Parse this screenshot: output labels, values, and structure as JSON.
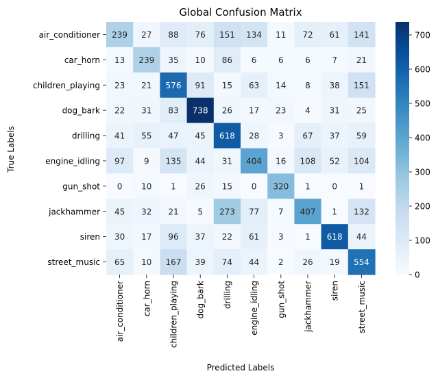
{
  "chart_data": {
    "type": "heatmap",
    "title": "Global Confusion Matrix",
    "xlabel": "Predicted Labels",
    "ylabel": "True Labels",
    "x_categories": [
      "air_conditioner",
      "car_horn",
      "children_playing",
      "dog_bark",
      "drilling",
      "engine_idling",
      "gun_shot",
      "jackhammer",
      "siren",
      "street_music"
    ],
    "y_categories": [
      "air_conditioner",
      "car_horn",
      "children_playing",
      "dog_bark",
      "drilling",
      "engine_idling",
      "gun_shot",
      "jackhammer",
      "siren",
      "street_music"
    ],
    "values": [
      [
        239,
        27,
        88,
        76,
        151,
        134,
        11,
        72,
        61,
        141
      ],
      [
        13,
        239,
        35,
        10,
        86,
        6,
        6,
        6,
        7,
        21
      ],
      [
        23,
        21,
        576,
        91,
        15,
        63,
        14,
        8,
        38,
        151
      ],
      [
        22,
        31,
        83,
        738,
        26,
        17,
        23,
        4,
        31,
        25
      ],
      [
        41,
        55,
        47,
        45,
        618,
        28,
        3,
        67,
        37,
        59
      ],
      [
        97,
        9,
        135,
        44,
        31,
        404,
        16,
        108,
        52,
        104
      ],
      [
        0,
        10,
        1,
        26,
        15,
        0,
        320,
        1,
        0,
        1
      ],
      [
        45,
        32,
        21,
        5,
        273,
        77,
        7,
        407,
        1,
        132
      ],
      [
        30,
        17,
        96,
        37,
        22,
        61,
        3,
        1,
        618,
        44
      ],
      [
        65,
        10,
        167,
        39,
        74,
        44,
        2,
        26,
        19,
        554
      ]
    ],
    "colormap": "Blues",
    "vmin": 0,
    "vmax": 738,
    "colorbar_ticks": [
      0,
      100,
      200,
      300,
      400,
      500,
      600,
      700
    ]
  }
}
